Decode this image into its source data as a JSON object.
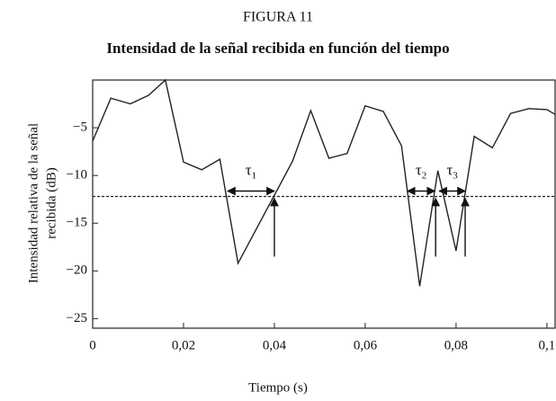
{
  "chart_data": {
    "type": "line",
    "figure_label": "FIGURA 11",
    "title": "Intensidad de la señal recibida en función del tiempo",
    "ylabel": [
      "Intensidad relativa de la señal",
      "recibida (dB)"
    ],
    "xlabel": "Tiempo (s)",
    "color": "#222222",
    "x": [
      0,
      0.004,
      0.0083,
      0.0123,
      0.016,
      0.02,
      0.024,
      0.028,
      0.032,
      0.044,
      0.048,
      0.052,
      0.056,
      0.06,
      0.064,
      0.068,
      0.072,
      0.076,
      0.08,
      0.084,
      0.088,
      0.092,
      0.096,
      0.1,
      0.1018
    ],
    "values": [
      -6.4,
      -1.9,
      -2.5,
      -1.6,
      0,
      -8.6,
      -9.4,
      -8.3,
      -19.2,
      -8.5,
      -3.2,
      -8.2,
      -7.7,
      -2.7,
      -3.3,
      -6.9,
      -21.6,
      -9.5,
      -17.9,
      -5.9,
      -7.1,
      -3.5,
      -3.0,
      -3.1,
      -3.6
    ],
    "threshold": -12.2,
    "intervals": [
      {
        "symbol": "τ",
        "sub": "1",
        "x": [
          0.0297,
          0.04
        ]
      },
      {
        "symbol": "τ",
        "sub": "2",
        "x": [
          0.0693,
          0.0753
        ]
      },
      {
        "symbol": "τ",
        "sub": "3",
        "x": [
          0.0763,
          0.082
        ]
      }
    ],
    "up_arrows": [
      0.04,
      0.0755,
      0.082
    ],
    "up_arrow_base": -18.5,
    "xlim": [
      0,
      0.1018
    ],
    "ylim": [
      -26,
      0
    ],
    "xticks": [
      {
        "value": 0,
        "label": "0"
      },
      {
        "value": 0.02,
        "label": "0,02"
      },
      {
        "value": 0.04,
        "label": "0,04"
      },
      {
        "value": 0.06,
        "label": "0,06"
      },
      {
        "value": 0.08,
        "label": "0,08"
      },
      {
        "value": 0.1,
        "label": "0,1"
      }
    ],
    "yticks": [
      {
        "value": -5,
        "label": "−5"
      },
      {
        "value": -10,
        "label": "−10"
      },
      {
        "value": -15,
        "label": "−15"
      },
      {
        "value": -20,
        "label": "−20"
      },
      {
        "value": -25,
        "label": "−25"
      }
    ]
  }
}
